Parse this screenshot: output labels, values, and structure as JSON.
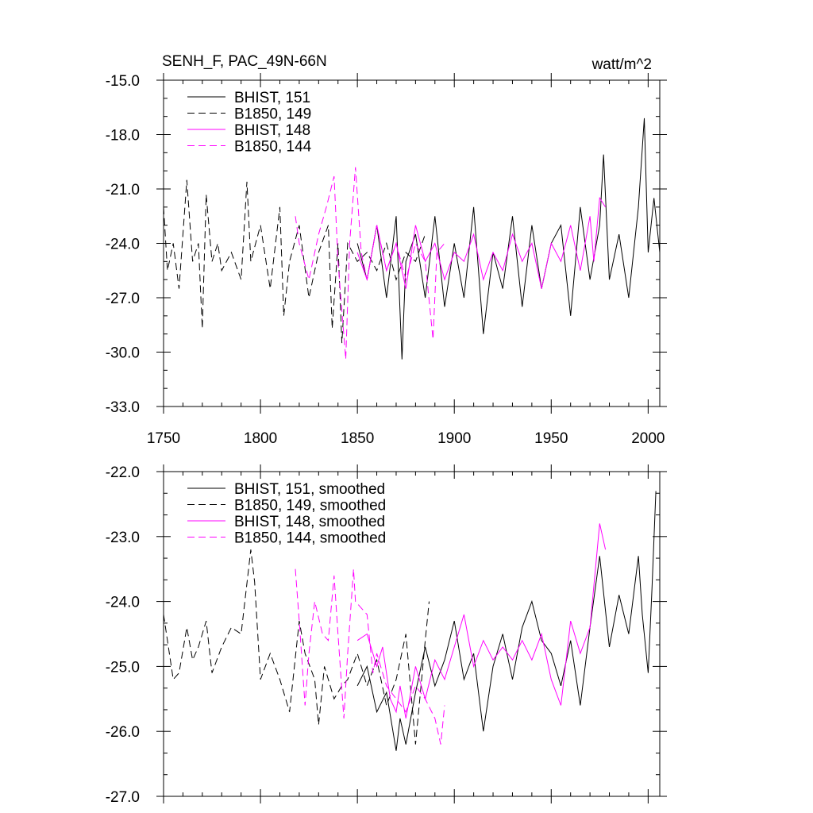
{
  "colors": {
    "black": "#000000",
    "magenta": "#ff00ff"
  },
  "chart_data": [
    {
      "type": "line",
      "title": "SENH_F, PAC_49N-66N",
      "units": "watt/m^2",
      "xlim": [
        1750,
        2006
      ],
      "ylim": [
        -33.0,
        -15.0
      ],
      "x_ticks": [
        1750,
        1800,
        1850,
        1900,
        1950,
        2000
      ],
      "x_tick_labels": [
        "1750",
        "1800",
        "1850",
        "1900",
        "1950",
        "2000"
      ],
      "y_ticks": [
        -33,
        -30,
        -27,
        -24,
        -21,
        -18,
        -15
      ],
      "y_tick_labels": [
        "-33.0",
        "-30.0",
        "-27.0",
        "-24.0",
        "-21.0",
        "-18.0",
        "-15.0"
      ],
      "series": [
        {
          "name": "BHIST, 151",
          "color": "#000000",
          "dash": "solid",
          "x": [
            1850,
            1855,
            1860,
            1865,
            1870,
            1873,
            1875,
            1880,
            1885,
            1890,
            1895,
            1900,
            1905,
            1910,
            1915,
            1920,
            1925,
            1930,
            1935,
            1940,
            1945,
            1950,
            1955,
            1960,
            1965,
            1970,
            1975,
            1977,
            1980,
            1985,
            1990,
            1995,
            1998,
            2000,
            2003,
            2006
          ],
          "values": [
            -24.0,
            -26.0,
            -23.0,
            -27.0,
            -22.5,
            -30.4,
            -25.0,
            -23.5,
            -27.0,
            -22.5,
            -27.5,
            -24.0,
            -27.0,
            -22.0,
            -29.0,
            -24.5,
            -26.5,
            -22.5,
            -27.5,
            -23.0,
            -26.5,
            -24.0,
            -23.0,
            -28.0,
            -22.0,
            -26.0,
            -23.0,
            -19.1,
            -26.0,
            -23.5,
            -27.0,
            -22.0,
            -17.1,
            -24.5,
            -21.5,
            -24.5
          ]
        },
        {
          "name": "B1850, 149",
          "color": "#000000",
          "dash": "dashed",
          "x": [
            1750,
            1752,
            1755,
            1758,
            1760,
            1762,
            1765,
            1768,
            1770,
            1772,
            1775,
            1778,
            1780,
            1785,
            1790,
            1793,
            1795,
            1800,
            1805,
            1810,
            1812,
            1815,
            1820,
            1825,
            1830,
            1835,
            1837,
            1840,
            1842,
            1845,
            1850,
            1855,
            1860,
            1865,
            1870,
            1875,
            1880,
            1885
          ],
          "values": [
            -22.0,
            -25.5,
            -24.0,
            -26.5,
            -23.5,
            -20.5,
            -25.0,
            -24.0,
            -28.7,
            -21.3,
            -25.0,
            -24.0,
            -25.5,
            -24.5,
            -26.0,
            -20.6,
            -25.0,
            -23.0,
            -26.5,
            -22.0,
            -28.0,
            -25.0,
            -23.0,
            -27.0,
            -24.5,
            -23.0,
            -28.7,
            -24.0,
            -29.5,
            -24.0,
            -25.0,
            -24.5,
            -25.5,
            -24.0,
            -26.0,
            -24.5,
            -25.0,
            -23.5
          ]
        },
        {
          "name": "BHIST, 148",
          "color": "#ff00ff",
          "dash": "solid",
          "x": [
            1850,
            1855,
            1860,
            1865,
            1870,
            1875,
            1880,
            1885,
            1890,
            1895,
            1900,
            1905,
            1910,
            1915,
            1920,
            1925,
            1930,
            1935,
            1940,
            1945,
            1950,
            1955,
            1960,
            1965,
            1970,
            1972,
            1975,
            1978
          ],
          "values": [
            -24.5,
            -26.0,
            -23.0,
            -25.5,
            -24.0,
            -26.5,
            -23.0,
            -25.0,
            -24.0,
            -26.0,
            -24.5,
            -25.0,
            -23.5,
            -26.0,
            -24.5,
            -25.5,
            -23.5,
            -25.0,
            -24.0,
            -26.5,
            -24.0,
            -25.0,
            -23.0,
            -25.5,
            -22.5,
            -25.0,
            -21.5,
            -22.0
          ]
        },
        {
          "name": "B1850, 144",
          "color": "#ff00ff",
          "dash": "dashed",
          "x": [
            1818,
            1820,
            1825,
            1830,
            1834,
            1838,
            1840,
            1844,
            1846,
            1849,
            1852,
            1855,
            1860,
            1865,
            1870,
            1875,
            1880,
            1885,
            1889,
            1891,
            1895
          ],
          "values": [
            -22.5,
            -24.0,
            -26.0,
            -23.5,
            -22.0,
            -20.3,
            -25.0,
            -30.4,
            -24.0,
            -19.8,
            -24.5,
            -26.0,
            -23.0,
            -25.5,
            -24.0,
            -26.0,
            -24.0,
            -25.0,
            -29.3,
            -24.5,
            -24.0
          ]
        }
      ]
    },
    {
      "type": "line",
      "xlim": [
        1750,
        2006
      ],
      "ylim": [
        -27.0,
        -22.0
      ],
      "x_ticks": [
        1750,
        1800,
        1850,
        1900,
        1950,
        2000
      ],
      "y_ticks": [
        -27,
        -26,
        -25,
        -24,
        -23,
        -22
      ],
      "y_tick_labels": [
        "-27.0",
        "-26.0",
        "-25.0",
        "-24.0",
        "-23.0",
        "-22.0"
      ],
      "series": [
        {
          "name": "BHIST, 151, smoothed",
          "color": "#000000",
          "dash": "solid",
          "x": [
            1850,
            1855,
            1860,
            1865,
            1870,
            1872,
            1875,
            1880,
            1885,
            1890,
            1895,
            1900,
            1905,
            1910,
            1915,
            1920,
            1925,
            1930,
            1935,
            1940,
            1945,
            1950,
            1955,
            1960,
            1965,
            1970,
            1975,
            1980,
            1985,
            1990,
            1995,
            1997,
            2000,
            2002,
            2004
          ],
          "values": [
            -25.3,
            -25.0,
            -25.7,
            -25.4,
            -26.3,
            -25.8,
            -26.2,
            -25.4,
            -24.7,
            -25.3,
            -24.9,
            -24.3,
            -25.2,
            -24.8,
            -26.0,
            -25.0,
            -24.5,
            -25.2,
            -24.4,
            -24.0,
            -24.6,
            -24.8,
            -25.3,
            -24.6,
            -25.6,
            -24.4,
            -23.3,
            -24.7,
            -23.9,
            -24.5,
            -23.3,
            -24.2,
            -25.1,
            -23.8,
            -22.3
          ]
        },
        {
          "name": "B1850, 149, smoothed",
          "color": "#000000",
          "dash": "dashed",
          "x": [
            1750,
            1752,
            1755,
            1758,
            1762,
            1765,
            1768,
            1772,
            1775,
            1780,
            1785,
            1790,
            1795,
            1797,
            1800,
            1805,
            1810,
            1815,
            1820,
            1823,
            1828,
            1830,
            1833,
            1838,
            1842,
            1845,
            1850,
            1855,
            1860,
            1865,
            1870,
            1875,
            1880,
            1885,
            1887
          ],
          "values": [
            -24.2,
            -24.6,
            -25.2,
            -25.1,
            -24.4,
            -24.9,
            -24.7,
            -24.3,
            -25.1,
            -24.7,
            -24.4,
            -24.5,
            -23.2,
            -23.7,
            -25.2,
            -24.8,
            -25.2,
            -25.7,
            -24.3,
            -24.8,
            -25.2,
            -25.9,
            -25.0,
            -25.5,
            -25.3,
            -25.2,
            -24.8,
            -25.3,
            -24.9,
            -25.6,
            -25.2,
            -24.5,
            -26.2,
            -24.6,
            -24.0
          ]
        },
        {
          "name": "BHIST, 148, smoothed",
          "color": "#ff00ff",
          "dash": "solid",
          "x": [
            1850,
            1855,
            1860,
            1863,
            1867,
            1870,
            1872,
            1875,
            1880,
            1885,
            1890,
            1895,
            1900,
            1905,
            1910,
            1915,
            1920,
            1925,
            1930,
            1935,
            1940,
            1945,
            1950,
            1955,
            1960,
            1965,
            1970,
            1975,
            1978
          ],
          "values": [
            -24.6,
            -24.5,
            -25.0,
            -24.7,
            -25.5,
            -25.7,
            -25.3,
            -25.8,
            -25.0,
            -25.5,
            -24.9,
            -25.2,
            -24.7,
            -24.2,
            -25.0,
            -24.6,
            -24.9,
            -24.7,
            -24.9,
            -24.6,
            -24.9,
            -24.5,
            -25.2,
            -25.6,
            -24.3,
            -24.8,
            -24.4,
            -22.8,
            -23.2
          ]
        },
        {
          "name": "B1850, 144, smoothed",
          "color": "#ff00ff",
          "dash": "dashed",
          "x": [
            1818,
            1820,
            1823,
            1825,
            1828,
            1832,
            1835,
            1838,
            1840,
            1843,
            1845,
            1848,
            1849,
            1852,
            1855,
            1858,
            1860,
            1865,
            1870,
            1875,
            1880,
            1885,
            1890,
            1893,
            1895
          ],
          "values": [
            -23.5,
            -24.3,
            -25.6,
            -24.8,
            -24.0,
            -24.5,
            -24.6,
            -23.6,
            -24.5,
            -25.8,
            -24.8,
            -23.5,
            -24.0,
            -24.1,
            -24.2,
            -25.1,
            -24.8,
            -25.3,
            -25.5,
            -25.7,
            -25.3,
            -25.5,
            -25.8,
            -26.2,
            -25.6
          ]
        }
      ]
    }
  ]
}
